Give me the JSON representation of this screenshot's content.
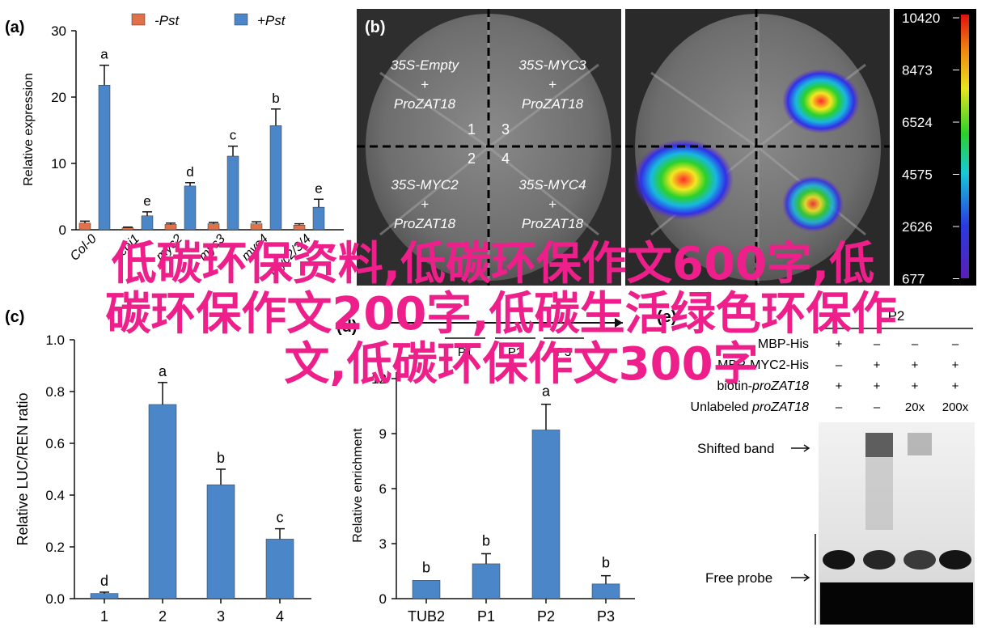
{
  "panel_a": {
    "label": "(a)",
    "ylabel": "Relative expression",
    "legend": [
      "-Pst",
      "+Pst"
    ],
    "colors": {
      "minus": "#e07149",
      "plus": "#4a86c8"
    },
    "yticks": [
      "0",
      "10",
      "20",
      "30"
    ],
    "categories": [
      "Col-0",
      "coi1",
      "myc2",
      "myc3",
      "myc4",
      "myc2/3/4"
    ],
    "letters": [
      "a",
      "e",
      "d",
      "c",
      "b",
      "e"
    ]
  },
  "panel_b": {
    "label": "(b)",
    "quadrant_labels": [
      [
        "35S-Empty",
        "+",
        "ProZAT18"
      ],
      [
        "35S-MYC3",
        "+",
        "ProZAT18"
      ],
      [
        "35S-MYC2",
        "+",
        "ProZAT18"
      ],
      [
        "35S-MYC4",
        "+",
        "ProZAT18"
      ]
    ],
    "quadrant_numbers": [
      "1",
      "3",
      "2",
      "4"
    ],
    "scale_values": [
      "10420",
      "8473",
      "6524",
      "4575",
      "2626",
      "677"
    ]
  },
  "panel_c": {
    "label": "(c)",
    "ylabel": "Relative LUC/REN ratio",
    "yticks": [
      "0.0",
      "0.2",
      "0.4",
      "0.6",
      "0.8",
      "1.0"
    ],
    "categories": [
      "1",
      "2",
      "3",
      "4"
    ],
    "letters": [
      "d",
      "a",
      "b",
      "c"
    ]
  },
  "panel_d": {
    "label": "(d)",
    "ylabel": "Relative enrichment",
    "yticks": [
      "0",
      "3",
      "6",
      "9",
      "12"
    ],
    "categories": [
      "TUB2",
      "P1",
      "P2",
      "P3"
    ],
    "letters": [
      "b",
      "b",
      "a",
      "b"
    ],
    "top_labels": [
      "P1",
      "P2",
      "P3"
    ]
  },
  "panel_e": {
    "label": "(e)",
    "probe_label": "P2",
    "rows": [
      {
        "name": "MBP-His",
        "italic": "",
        "values": [
          "+",
          "–",
          "–",
          "–"
        ]
      },
      {
        "name": "MBP-MYC2-His",
        "italic": "",
        "values": [
          "–",
          "+",
          "+",
          "+"
        ]
      },
      {
        "name": "biotin-",
        "italic": "proZAT18",
        "values": [
          "+",
          "+",
          "+",
          "+"
        ]
      },
      {
        "name": "Unlabeled ",
        "italic": "proZAT18",
        "values": [
          "–",
          "–",
          "20x",
          "200x"
        ]
      }
    ],
    "shifted_band": "Shifted band",
    "free_probe": "Free probe"
  },
  "overlay": {
    "line1": "低碳环保资料,低碳环保作文600字,低",
    "line2": "碳环保作文200字,低碳生活绿色环保作",
    "line3": "文,低碳环保作文300字"
  },
  "chart_data": [
    {
      "type": "bar",
      "panel": "a",
      "ylabel": "Relative expression",
      "ylim": [
        0,
        30
      ],
      "categories": [
        "Col-0",
        "coi1",
        "myc2",
        "myc3",
        "myc4",
        "myc2/3/4"
      ],
      "series": [
        {
          "name": "-Pst",
          "values": [
            1.0,
            0.3,
            0.8,
            0.9,
            0.9,
            0.7
          ],
          "errors": [
            0.3,
            0.1,
            0.2,
            0.2,
            0.3,
            0.2
          ]
        },
        {
          "name": "+Pst",
          "values": [
            21.8,
            2.1,
            6.6,
            11.1,
            15.7,
            3.4
          ],
          "errors": [
            3.0,
            0.6,
            0.5,
            1.5,
            2.5,
            1.2
          ]
        }
      ],
      "letters": [
        "a",
        "e",
        "d",
        "c",
        "b",
        "e"
      ]
    },
    {
      "type": "bar",
      "panel": "c",
      "ylabel": "Relative LUC/REN ratio",
      "ylim": [
        0,
        1.0
      ],
      "categories": [
        "1",
        "2",
        "3",
        "4"
      ],
      "values": [
        0.02,
        0.75,
        0.44,
        0.23
      ],
      "errors": [
        0.005,
        0.085,
        0.06,
        0.04
      ],
      "letters": [
        "d",
        "a",
        "b",
        "c"
      ]
    },
    {
      "type": "bar",
      "panel": "d",
      "ylabel": "Relative enrichment",
      "ylim": [
        0,
        12
      ],
      "categories": [
        "TUB2",
        "P1",
        "P2",
        "P3"
      ],
      "values": [
        1.0,
        1.9,
        9.2,
        0.8
      ],
      "errors": [
        0.0,
        0.55,
        1.4,
        0.45
      ],
      "letters": [
        "b",
        "b",
        "a",
        "b"
      ]
    }
  ]
}
